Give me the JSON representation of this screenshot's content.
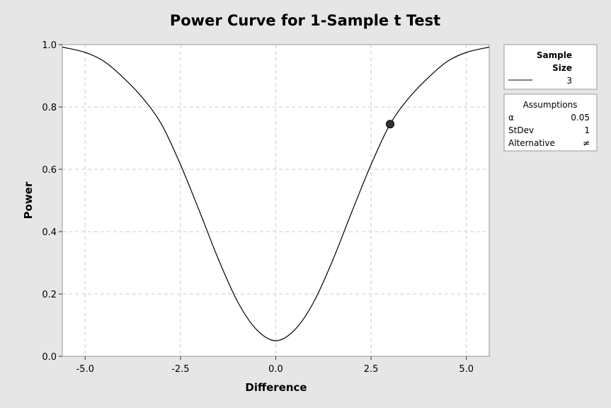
{
  "chart_data": {
    "type": "line",
    "title": "Power Curve for 1-Sample t Test",
    "xlabel": "Difference",
    "ylabel": "Power",
    "xlim": [
      -5.6,
      5.6
    ],
    "ylim": [
      0.0,
      1.0
    ],
    "x_ticks": [
      -5.0,
      -2.5,
      0.0,
      2.5,
      5.0
    ],
    "x_tick_labels": [
      "-5.0",
      "-2.5",
      "0.0",
      "2.5",
      "5.0"
    ],
    "y_ticks": [
      0.0,
      0.2,
      0.4,
      0.6,
      0.8,
      1.0
    ],
    "y_tick_labels": [
      "0.0",
      "0.2",
      "0.4",
      "0.6",
      "0.8",
      "1.0"
    ],
    "grid": true,
    "series": [
      {
        "name": "3",
        "x": [
          -5.6,
          -5.0,
          -4.5,
          -4.0,
          -3.5,
          -3.0,
          -2.5,
          -2.0,
          -1.5,
          -1.0,
          -0.5,
          0.0,
          0.5,
          1.0,
          1.5,
          2.0,
          2.5,
          3.0,
          3.5,
          4.0,
          4.5,
          5.0,
          5.6
        ],
        "y": [
          0.992,
          0.975,
          0.946,
          0.894,
          0.83,
          0.745,
          0.615,
          0.465,
          0.31,
          0.175,
          0.085,
          0.05,
          0.085,
          0.175,
          0.31,
          0.465,
          0.615,
          0.745,
          0.83,
          0.894,
          0.946,
          0.975,
          0.992
        ]
      }
    ],
    "highlight_point": {
      "x": 3.0,
      "y": 0.745
    }
  },
  "legend": {
    "header_line1": "Sample",
    "header_line2": "Size",
    "entries": [
      {
        "label": "3"
      }
    ]
  },
  "assumptions": {
    "title": "Assumptions",
    "rows": [
      {
        "label": "α",
        "value": "0.05"
      },
      {
        "label": "StDev",
        "value": "1"
      },
      {
        "label": "Alternative",
        "value": "≠"
      }
    ]
  },
  "colors": {
    "background": "#e6e6e6",
    "plot_background": "#ffffff",
    "line": "#000000",
    "grid": "#cccccc",
    "point": "#333333"
  }
}
